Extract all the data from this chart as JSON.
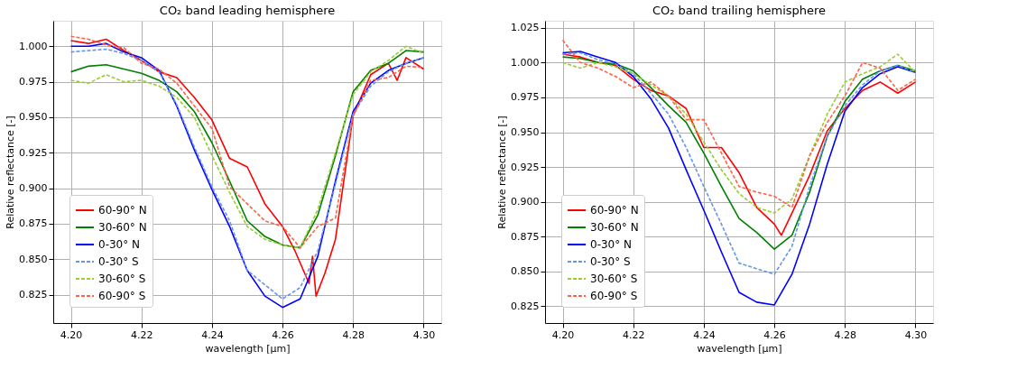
{
  "chart_data": [
    {
      "type": "line",
      "title": "CO₂ band leading hemisphere",
      "xlabel": "wavelength [μm]",
      "ylabel": "Relative reflectance [-]",
      "x": [
        4.2,
        4.205,
        4.21,
        4.215,
        4.22,
        4.225,
        4.23,
        4.235,
        4.24,
        4.245,
        4.25,
        4.255,
        4.26,
        4.265,
        4.27,
        4.275,
        4.28,
        4.285,
        4.29,
        4.295,
        4.3
      ],
      "xlim": [
        4.195,
        4.305
      ],
      "ylim": [
        0.805,
        1.018
      ],
      "xticks": [
        {
          "value": 4.2,
          "label": "4.20"
        },
        {
          "value": 4.22,
          "label": "4.22"
        },
        {
          "value": 4.24,
          "label": "4.24"
        },
        {
          "value": 4.26,
          "label": "4.26"
        },
        {
          "value": 4.28,
          "label": "4.28"
        },
        {
          "value": 4.3,
          "label": "4.30"
        }
      ],
      "yticks": [
        {
          "value": 0.825,
          "label": "0.825"
        },
        {
          "value": 0.85,
          "label": "0.850"
        },
        {
          "value": 0.875,
          "label": "0.875"
        },
        {
          "value": 0.9,
          "label": "0.900"
        },
        {
          "value": 0.925,
          "label": "0.925"
        },
        {
          "value": 0.95,
          "label": "0.950"
        },
        {
          "value": 0.975,
          "label": "0.975"
        },
        {
          "value": 1.0,
          "label": "1.000"
        }
      ],
      "grid": true,
      "legend": "bottom left",
      "series": [
        {
          "name": "60-90° N",
          "color": "#ff0000",
          "line_style": "solid",
          "x": [
            4.2,
            4.205,
            4.21,
            4.215,
            4.22,
            4.225,
            4.23,
            4.235,
            4.24,
            4.245,
            4.25,
            4.255,
            4.26,
            4.2635,
            4.2675,
            4.2685,
            4.2695,
            4.272,
            4.275,
            4.28,
            4.285,
            4.29,
            4.2925,
            4.295,
            4.3
          ],
          "values": [
            1.004,
            1.002,
            1.005,
            0.997,
            0.99,
            0.982,
            0.978,
            0.964,
            0.948,
            0.921,
            0.915,
            0.889,
            0.873,
            0.856,
            0.833,
            0.852,
            0.824,
            0.84,
            0.864,
            0.951,
            0.98,
            0.988,
            0.976,
            0.992,
            0.984
          ]
        },
        {
          "name": "30-60° N",
          "color": "#008000",
          "line_style": "solid",
          "values": [
            0.982,
            0.986,
            0.987,
            0.984,
            0.981,
            0.976,
            0.968,
            0.954,
            0.932,
            0.905,
            0.877,
            0.866,
            0.86,
            0.858,
            0.881,
            0.923,
            0.968,
            0.983,
            0.988,
            0.997,
            0.996
          ]
        },
        {
          "name": "0-30°   N",
          "color": "#0000ff",
          "line_style": "solid",
          "values": [
            1.0,
            1.0,
            1.002,
            0.996,
            0.992,
            0.983,
            0.958,
            0.927,
            0.899,
            0.873,
            0.842,
            0.824,
            0.816,
            0.822,
            0.852,
            0.905,
            0.954,
            0.974,
            0.983,
            0.988,
            0.992
          ]
        },
        {
          "name": "0-30°   S",
          "color": "#6495ed",
          "line_style": "dashed",
          "values": [
            0.996,
            0.997,
            0.998,
            0.995,
            0.99,
            0.982,
            0.959,
            0.929,
            0.901,
            0.877,
            0.842,
            0.832,
            0.822,
            0.83,
            0.856,
            0.903,
            0.952,
            0.972,
            0.982,
            0.988,
            0.992
          ]
        },
        {
          "name": "30-60° S",
          "color": "#9acd32",
          "line_style": "dashed",
          "values": [
            0.976,
            0.974,
            0.98,
            0.975,
            0.976,
            0.972,
            0.964,
            0.95,
            0.923,
            0.897,
            0.873,
            0.864,
            0.86,
            0.858,
            0.885,
            0.925,
            0.966,
            0.982,
            0.99,
            1.0,
            0.995
          ]
        },
        {
          "name": "60-90° S",
          "color": "#ff6347",
          "line_style": "dashed",
          "values": [
            1.007,
            1.005,
            1.001,
            0.999,
            0.988,
            0.984,
            0.974,
            0.958,
            0.942,
            0.901,
            0.889,
            0.877,
            0.873,
            0.858,
            0.873,
            0.879,
            0.951,
            0.976,
            0.978,
            0.986,
            0.985
          ]
        }
      ]
    },
    {
      "type": "line",
      "title": "CO₂ band trailing hemisphere",
      "xlabel": "wavelength [μm]",
      "ylabel": "Relative reflectance [-]",
      "x": [
        4.2,
        4.205,
        4.21,
        4.215,
        4.22,
        4.225,
        4.23,
        4.235,
        4.24,
        4.245,
        4.25,
        4.255,
        4.26,
        4.265,
        4.27,
        4.275,
        4.28,
        4.285,
        4.29,
        4.295,
        4.3
      ],
      "xlim": [
        4.195,
        4.305
      ],
      "ylim": [
        0.813,
        1.03
      ],
      "xticks": [
        {
          "value": 4.2,
          "label": "4.20"
        },
        {
          "value": 4.22,
          "label": "4.22"
        },
        {
          "value": 4.24,
          "label": "4.24"
        },
        {
          "value": 4.26,
          "label": "4.26"
        },
        {
          "value": 4.28,
          "label": "4.28"
        },
        {
          "value": 4.3,
          "label": "4.30"
        }
      ],
      "yticks": [
        {
          "value": 0.825,
          "label": "0.825"
        },
        {
          "value": 0.85,
          "label": "0.850"
        },
        {
          "value": 0.875,
          "label": "0.875"
        },
        {
          "value": 0.9,
          "label": "0.900"
        },
        {
          "value": 0.925,
          "label": "0.925"
        },
        {
          "value": 0.95,
          "label": "0.950"
        },
        {
          "value": 0.975,
          "label": "0.975"
        },
        {
          "value": 1.0,
          "label": "1.000"
        },
        {
          "value": 1.025,
          "label": "1.025"
        }
      ],
      "grid": true,
      "legend": "bottom left",
      "series": [
        {
          "name": "60-90° N",
          "color": "#ff0000",
          "line_style": "solid",
          "x": [
            4.2,
            4.205,
            4.21,
            4.215,
            4.22,
            4.225,
            4.23,
            4.235,
            4.24,
            4.245,
            4.25,
            4.255,
            4.26,
            4.262,
            4.265,
            4.27,
            4.275,
            4.28,
            4.285,
            4.29,
            4.295,
            4.3
          ],
          "values": [
            1.006,
            1.004,
            1.0,
            0.998,
            0.988,
            0.98,
            0.976,
            0.967,
            0.939,
            0.939,
            0.921,
            0.896,
            0.884,
            0.876,
            0.892,
            0.919,
            0.951,
            0.967,
            0.98,
            0.986,
            0.978,
            0.986
          ]
        },
        {
          "name": "30-60° N",
          "color": "#008000",
          "line_style": "solid",
          "values": [
            1.004,
            1.003,
            1.0,
            0.999,
            0.994,
            0.982,
            0.969,
            0.957,
            0.935,
            0.911,
            0.888,
            0.878,
            0.866,
            0.876,
            0.907,
            0.947,
            0.972,
            0.988,
            0.994,
            0.998,
            0.994
          ]
        },
        {
          "name": "0-30°   N",
          "color": "#0000ff",
          "line_style": "solid",
          "values": [
            1.007,
            1.008,
            1.004,
            1.0,
            0.99,
            0.974,
            0.953,
            0.923,
            0.894,
            0.864,
            0.835,
            0.828,
            0.826,
            0.848,
            0.884,
            0.927,
            0.965,
            0.982,
            0.992,
            0.997,
            0.993
          ]
        },
        {
          "name": "0-30°   S",
          "color": "#6495ed",
          "line_style": "dashed",
          "values": [
            1.006,
            1.007,
            1.002,
            0.999,
            0.992,
            0.978,
            0.963,
            0.939,
            0.911,
            0.884,
            0.856,
            0.852,
            0.848,
            0.868,
            0.911,
            0.947,
            0.969,
            0.984,
            0.994,
            0.998,
            0.993
          ]
        },
        {
          "name": "30-60° S",
          "color": "#9acd32",
          "line_style": "dashed",
          "values": [
            1.0,
            0.996,
            1.0,
            0.997,
            0.992,
            0.984,
            0.976,
            0.963,
            0.943,
            0.923,
            0.906,
            0.896,
            0.892,
            0.902,
            0.933,
            0.963,
            0.986,
            0.992,
            0.997,
            1.006,
            0.993
          ]
        },
        {
          "name": "60-90° S",
          "color": "#ff6347",
          "line_style": "dashed",
          "values": [
            1.016,
            1.0,
            0.996,
            0.99,
            0.982,
            0.986,
            0.976,
            0.959,
            0.959,
            0.935,
            0.911,
            0.907,
            0.904,
            0.896,
            0.933,
            0.957,
            0.976,
            1.0,
            0.996,
            0.98,
            0.988
          ]
        }
      ]
    }
  ]
}
